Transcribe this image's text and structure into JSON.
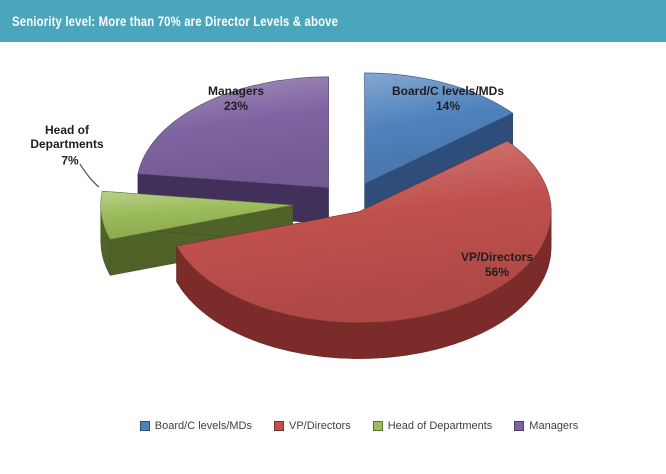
{
  "header": {
    "title": "Seniority level: More than 70% are Director Levels & above",
    "bg_color": "#4BA6BB",
    "text_color": "#FFFFFF"
  },
  "chart_data": {
    "type": "pie",
    "style": "3d-exploded",
    "title": "Seniority level: More than 70% are Director Levels & above",
    "direction": "clockwise",
    "start_angle_deg": 0,
    "legend_position": "bottom",
    "slices": [
      {
        "label": "Board/C levels/MDs",
        "value": 14,
        "display": "14%",
        "color": "#4F81BD",
        "side_color": "#2E4D7B"
      },
      {
        "label": "VP/Directors",
        "value": 56,
        "display": "56%",
        "color": "#C0504D",
        "side_color": "#7A2B2A"
      },
      {
        "label": "Head of Departments",
        "value": 7,
        "display": "7%",
        "color": "#9BBB59",
        "side_color": "#4F6228"
      },
      {
        "label": "Managers",
        "value": 23,
        "display": "23%",
        "color": "#8064A2",
        "side_color": "#41305A"
      }
    ]
  }
}
